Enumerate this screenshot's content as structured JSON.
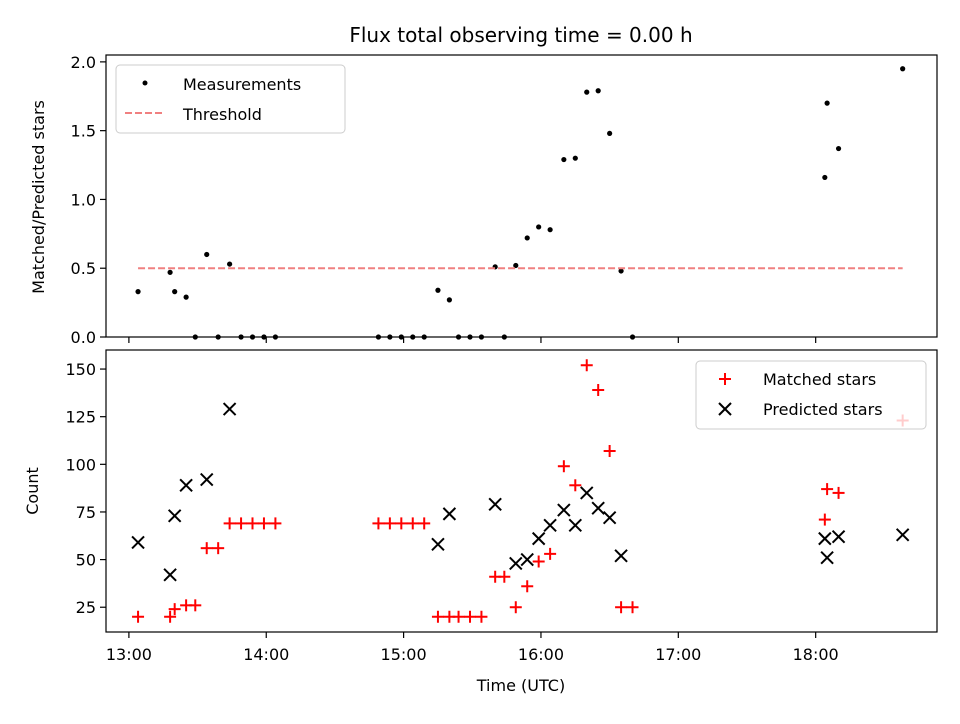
{
  "chart_data": [
    {
      "type": "scatter",
      "title": "Flux total observing time = 0.00 h",
      "xlabel": "",
      "ylabel": "Matched/Predicted stars",
      "ylim": [
        0,
        2.05
      ],
      "xlim": [
        "12:50",
        "18:53"
      ],
      "yticks": [
        "0.0",
        "0.5",
        "1.0",
        "1.5",
        "2.0"
      ],
      "legend": "top-left",
      "series": [
        {
          "name": "Measurements",
          "marker": "dot",
          "color": "#000000",
          "points": [
            [
              "13:04",
              0.33
            ],
            [
              "13:18",
              0.47
            ],
            [
              "13:20",
              0.33
            ],
            [
              "13:25",
              0.29
            ],
            [
              "13:29",
              0.0
            ],
            [
              "13:34",
              0.6
            ],
            [
              "13:39",
              0.0
            ],
            [
              "13:44",
              0.53
            ],
            [
              "13:49",
              0.0
            ],
            [
              "13:54",
              0.0
            ],
            [
              "13:59",
              0.0
            ],
            [
              "14:04",
              0.0
            ],
            [
              "14:49",
              0.0
            ],
            [
              "14:54",
              0.0
            ],
            [
              "14:59",
              0.0
            ],
            [
              "15:04",
              0.0
            ],
            [
              "15:09",
              0.0
            ],
            [
              "15:15",
              0.34
            ],
            [
              "15:20",
              0.27
            ],
            [
              "15:24",
              0.0
            ],
            [
              "15:29",
              0.0
            ],
            [
              "15:34",
              0.0
            ],
            [
              "15:40",
              0.51
            ],
            [
              "15:44",
              0.0
            ],
            [
              "15:49",
              0.52
            ],
            [
              "15:54",
              0.72
            ],
            [
              "15:59",
              0.8
            ],
            [
              "16:04",
              0.78
            ],
            [
              "16:10",
              1.29
            ],
            [
              "16:15",
              1.3
            ],
            [
              "16:20",
              1.78
            ],
            [
              "16:25",
              1.79
            ],
            [
              "16:30",
              1.48
            ],
            [
              "16:35",
              0.48
            ],
            [
              "16:40",
              0.0
            ],
            [
              "18:04",
              1.16
            ],
            [
              "18:05",
              1.7
            ],
            [
              "18:10",
              1.37
            ],
            [
              "18:38",
              1.95
            ]
          ]
        },
        {
          "name": "Threshold",
          "marker": "dashed-line",
          "color": "#f08080",
          "points": [
            [
              "13:04",
              0.5
            ],
            [
              "18:38",
              0.5
            ]
          ]
        }
      ]
    },
    {
      "type": "scatter",
      "title": "",
      "xlabel": "Time (UTC)",
      "ylabel": "Count",
      "ylim": [
        12,
        160
      ],
      "xlim": [
        "12:50",
        "18:53"
      ],
      "xticks": [
        "13:00",
        "14:00",
        "15:00",
        "16:00",
        "17:00",
        "18:00"
      ],
      "yticks": [
        "25",
        "50",
        "75",
        "100",
        "125",
        "150"
      ],
      "legend": "top-right",
      "series": [
        {
          "name": "Matched stars",
          "marker": "plus",
          "color": "#ff0000",
          "points": [
            [
              "13:04",
              20
            ],
            [
              "13:18",
              20
            ],
            [
              "13:20",
              24
            ],
            [
              "13:25",
              26
            ],
            [
              "13:29",
              26
            ],
            [
              "13:34",
              56
            ],
            [
              "13:39",
              56
            ],
            [
              "13:44",
              69
            ],
            [
              "13:49",
              69
            ],
            [
              "13:54",
              69
            ],
            [
              "13:59",
              69
            ],
            [
              "14:04",
              69
            ],
            [
              "14:49",
              69
            ],
            [
              "14:54",
              69
            ],
            [
              "14:59",
              69
            ],
            [
              "15:04",
              69
            ],
            [
              "15:09",
              69
            ],
            [
              "15:15",
              20
            ],
            [
              "15:20",
              20
            ],
            [
              "15:24",
              20
            ],
            [
              "15:29",
              20
            ],
            [
              "15:34",
              20
            ],
            [
              "15:40",
              41
            ],
            [
              "15:44",
              41
            ],
            [
              "15:49",
              25
            ],
            [
              "15:54",
              36
            ],
            [
              "15:59",
              49
            ],
            [
              "16:04",
              53
            ],
            [
              "16:10",
              99
            ],
            [
              "16:15",
              89
            ],
            [
              "16:20",
              152
            ],
            [
              "16:25",
              139
            ],
            [
              "16:30",
              107
            ],
            [
              "16:35",
              25
            ],
            [
              "16:40",
              25
            ],
            [
              "18:04",
              71
            ],
            [
              "18:05",
              87
            ],
            [
              "18:10",
              85
            ],
            [
              "18:38",
              123
            ]
          ]
        },
        {
          "name": "Predicted stars",
          "marker": "x",
          "color": "#000000",
          "points": [
            [
              "13:04",
              59
            ],
            [
              "13:18",
              42
            ],
            [
              "13:20",
              73
            ],
            [
              "13:25",
              89
            ],
            [
              "13:34",
              92
            ],
            [
              "13:44",
              129
            ],
            [
              "15:15",
              58
            ],
            [
              "15:20",
              74
            ],
            [
              "15:40",
              79
            ],
            [
              "15:49",
              48
            ],
            [
              "15:54",
              50
            ],
            [
              "15:59",
              61
            ],
            [
              "16:04",
              68
            ],
            [
              "16:10",
              76
            ],
            [
              "16:15",
              68
            ],
            [
              "16:20",
              85
            ],
            [
              "16:25",
              77
            ],
            [
              "16:30",
              72
            ],
            [
              "16:35",
              52
            ],
            [
              "18:04",
              61
            ],
            [
              "18:05",
              51
            ],
            [
              "18:10",
              62
            ],
            [
              "18:38",
              63
            ]
          ]
        }
      ]
    }
  ]
}
